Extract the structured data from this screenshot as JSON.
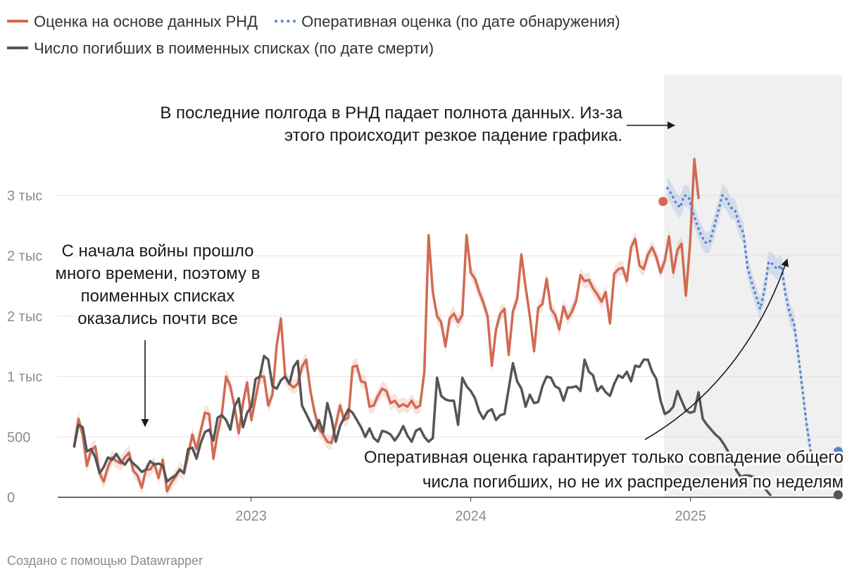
{
  "legend": [
    {
      "label": "Оценка на основе данных РНД",
      "color": "#d26a52",
      "style": "solid"
    },
    {
      "label": "Оперативная оценка (по дате обнаружения)",
      "color": "#5a84d0",
      "style": "dotted"
    },
    {
      "label": "Число погибших в поименных списках (по дате смерти)",
      "color": "#555555",
      "style": "solid"
    }
  ],
  "credit": "Создано с помощью Datawrapper",
  "chart_data": {
    "type": "line",
    "title": "",
    "xlabel": "",
    "ylabel": "",
    "x_range": [
      2022.12,
      2025.69
    ],
    "ylim": [
      0,
      3500
    ],
    "y_ticks": [
      {
        "value": 0,
        "label": "0"
      },
      {
        "value": 500,
        "label": "500"
      },
      {
        "value": 1000,
        "label": "1 тыс"
      },
      {
        "value": 1500,
        "label": "2 тыс"
      },
      {
        "value": 2000,
        "label": "2 тыс"
      },
      {
        "value": 2500,
        "label": "3 тыс"
      }
    ],
    "x_ticks": [
      {
        "value": 2023.0,
        "label": "2023"
      },
      {
        "value": 2024.0,
        "label": "2024"
      },
      {
        "value": 2025.0,
        "label": "2025"
      }
    ],
    "shaded_region": {
      "x_start": 2024.88,
      "x_end": 2025.69,
      "color": "#f0f0f0"
    },
    "series": [
      {
        "name": "Оценка на основе данных РНД",
        "color": "#d26a52",
        "style": "solid",
        "band": 60,
        "x_start": 2022.195,
        "x_step": 0.0192,
        "values": [
          430,
          650,
          520,
          260,
          390,
          420,
          200,
          130,
          250,
          330,
          300,
          280,
          330,
          370,
          220,
          180,
          80,
          230,
          230,
          280,
          160,
          310,
          50,
          120,
          170,
          230,
          200,
          350,
          520,
          400,
          550,
          700,
          690,
          320,
          530,
          690,
          1000,
          920,
          750,
          530,
          780,
          950,
          640,
          820,
          1000,
          1000,
          760,
          850,
          1260,
          1480,
          1000,
          940,
          910,
          940,
          1080,
          1140,
          880,
          700,
          570,
          520,
          460,
          450,
          600,
          760,
          640,
          660,
          1080,
          1090,
          960,
          950,
          750,
          760,
          840,
          900,
          880,
          780,
          800,
          750,
          770,
          750,
          800,
          740,
          760,
          1040,
          2170,
          1700,
          1500,
          1450,
          1250,
          1480,
          1520,
          1450,
          1510,
          2170,
          1860,
          1810,
          1700,
          1610,
          1500,
          1090,
          1390,
          1520,
          1560,
          1180,
          1540,
          1640,
          2010,
          1740,
          1500,
          1210,
          1570,
          1600,
          1810,
          1560,
          1510,
          1390,
          1580,
          1480,
          1540,
          1630,
          1840,
          1790,
          1800,
          1730,
          1680,
          1620,
          1700,
          1440,
          1850,
          1890,
          1900,
          1790,
          2070,
          2140,
          1920,
          1890,
          2010,
          2070,
          1990,
          1860,
          1960,
          2160,
          1860,
          2050,
          2100,
          1670,
          2100,
          2800,
          2480
        ]
      },
      {
        "name": "Оперативная оценка (по дате обнаружения)",
        "color": "#5a84d0",
        "style": "dotted",
        "band": 90,
        "x_start": 2024.895,
        "x_step": 0.0192,
        "values": [
          2560,
          2510,
          2440,
          2400,
          2500,
          2490,
          2360,
          2260,
          2170,
          2110,
          2110,
          2230,
          2360,
          2500,
          2470,
          2400,
          2380,
          2260,
          2190,
          1900,
          1780,
          1670,
          1560,
          1710,
          1950,
          1930,
          1890,
          1920,
          1680,
          1520,
          1440,
          1180,
          900,
          600,
          380
        ]
      },
      {
        "name": "Число погибших в поименных списках (по дате смерти)",
        "color": "#555555",
        "style": "solid",
        "band": 0,
        "x_start": 2022.195,
        "x_step": 0.0192,
        "values": [
          420,
          600,
          580,
          380,
          400,
          330,
          200,
          250,
          330,
          310,
          360,
          300,
          270,
          320,
          280,
          250,
          210,
          230,
          300,
          270,
          280,
          260,
          130,
          160,
          180,
          230,
          200,
          400,
          410,
          320,
          450,
          540,
          560,
          470,
          660,
          680,
          640,
          560,
          750,
          820,
          580,
          700,
          750,
          980,
          1000,
          1170,
          1140,
          920,
          900,
          970,
          1000,
          940,
          1080,
          1130,
          760,
          690,
          620,
          550,
          640,
          540,
          780,
          650,
          460,
          590,
          660,
          730,
          700,
          640,
          580,
          500,
          570,
          490,
          460,
          550,
          540,
          520,
          470,
          520,
          590,
          510,
          460,
          550,
          570,
          500,
          460,
          490,
          990,
          840,
          810,
          800,
          800,
          600,
          990,
          920,
          880,
          820,
          710,
          650,
          710,
          730,
          640,
          680,
          690,
          900,
          1110,
          960,
          900,
          750,
          850,
          780,
          790,
          920,
          1000,
          990,
          920,
          900,
          800,
          910,
          910,
          920,
          880,
          1140,
          1040,
          1010,
          880,
          920,
          870,
          840,
          940,
          1010,
          990,
          1040,
          960,
          1090,
          1080,
          1140,
          1140,
          1040,
          980,
          800,
          690,
          710,
          750,
          880,
          800,
          720,
          700,
          710,
          870,
          650,
          600,
          560,
          520,
          490,
          440,
          380,
          300,
          220,
          170,
          180,
          180,
          170,
          130,
          130,
          60,
          20
        ]
      }
    ],
    "endpoints": [
      {
        "series": 0,
        "x": 2024.875,
        "y": 2450
      },
      {
        "series": 1,
        "x": 2025.672,
        "y": 380
      },
      {
        "series": 2,
        "x": 2025.672,
        "y": 20
      }
    ],
    "annotations": [
      {
        "lines": [
          "В последние полгода в РНД падает полнота данных. Из-за",
          "этого происходит резкое падение графика."
        ],
        "align": "end"
      },
      {
        "lines": [
          "С начала войны прошло",
          "много времени, поэтому в",
          "поименных списках",
          "оказались почти все"
        ],
        "align": "middle"
      },
      {
        "lines": [
          "Оперативная оценка гарантирует только совпадение общего",
          "числа погибших, но не их распределения по неделям"
        ],
        "align": "end"
      }
    ]
  }
}
